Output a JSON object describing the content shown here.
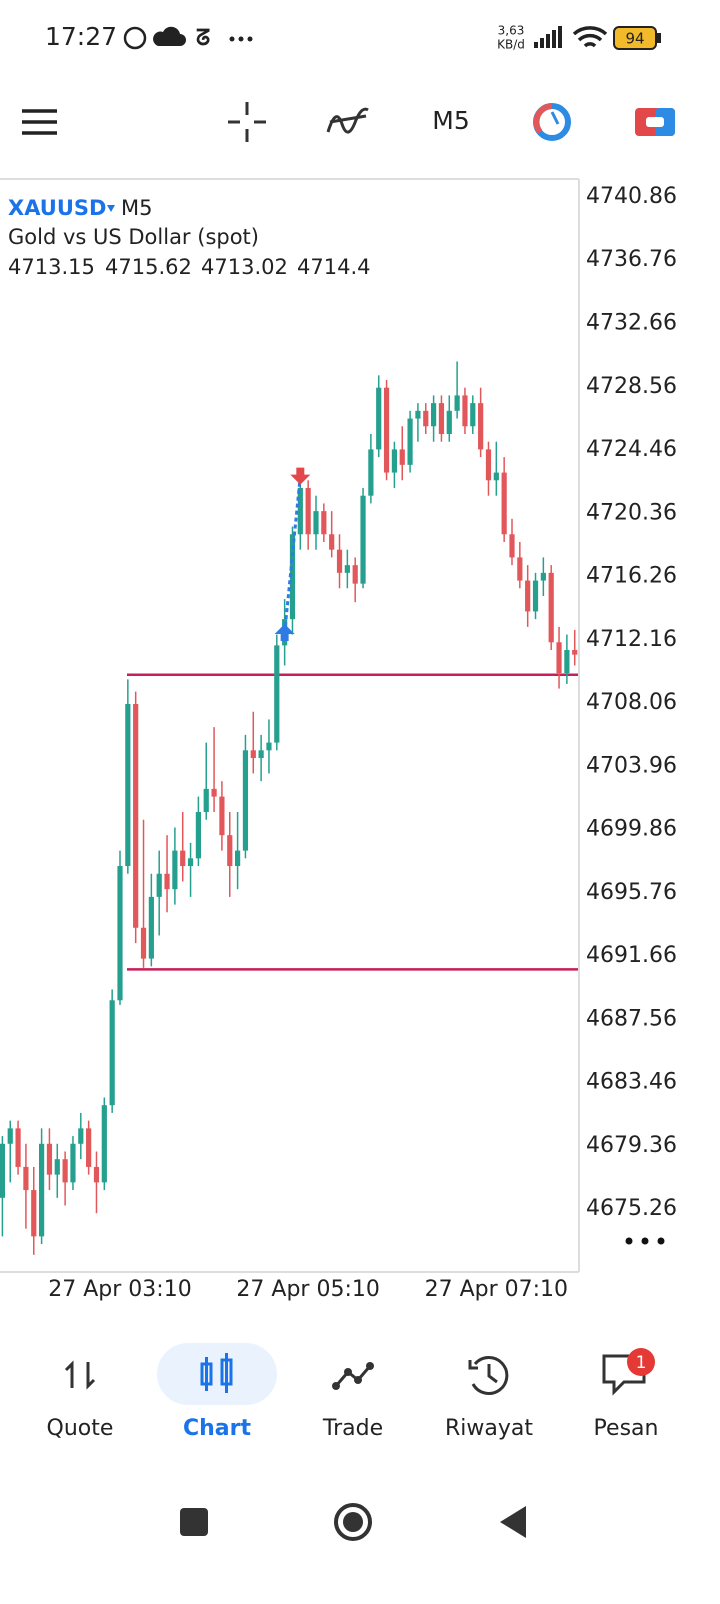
{
  "status": {
    "time": "17:27",
    "speed": [
      "3,63",
      "KB/d"
    ],
    "battery": 94
  },
  "toolbar": {
    "timeframe": "M5"
  },
  "chart_header": {
    "symbol": "XAUUSD",
    "timeframe": "M5",
    "description": "Gold vs US Dollar (spot)",
    "ohlc": [
      4713.15,
      4715.62,
      4713.02,
      4714.4
    ]
  },
  "chart_data": {
    "type": "candlestick",
    "ylim": [
      4671.19,
      4741.96
    ],
    "yticks": [
      4740.86,
      4736.76,
      4732.66,
      4728.56,
      4724.46,
      4720.36,
      4716.26,
      4712.16,
      4708.06,
      4703.96,
      4699.86,
      4695.76,
      4691.66,
      4687.56,
      4683.46,
      4679.36,
      4675.26
    ],
    "categories": [
      null,
      null,
      null,
      null,
      null,
      null,
      null,
      null,
      null,
      null,
      null,
      null,
      null,
      null,
      null,
      "27 Apr 03:10",
      null,
      null,
      null,
      null,
      null,
      null,
      null,
      null,
      null,
      null,
      null,
      null,
      null,
      null,
      null,
      null,
      null,
      null,
      null,
      null,
      null,
      null,
      null,
      "27 Apr 05:10",
      null,
      null,
      null,
      null,
      null,
      null,
      null,
      null,
      null,
      null,
      null,
      null,
      null,
      null,
      null,
      null,
      null,
      null,
      null,
      null,
      null,
      null,
      null,
      "27 Apr 07:10",
      null,
      null,
      null,
      null,
      null,
      null,
      null,
      null,
      null,
      null
    ],
    "up_color": "#26a08e",
    "down_color": "#e2575a",
    "candles": [
      [
        4676.0,
        4680.0,
        4673.5,
        4679.5
      ],
      [
        4679.5,
        4681.0,
        4677.0,
        4680.5
      ],
      [
        4680.5,
        4681.0,
        4677.5,
        4678.0
      ],
      [
        4678.0,
        4679.5,
        4674.0,
        4676.5
      ],
      [
        4676.5,
        4678.0,
        4672.3,
        4673.5
      ],
      [
        4673.5,
        4680.5,
        4673.0,
        4679.5
      ],
      [
        4679.5,
        4680.5,
        4676.5,
        4677.5
      ],
      [
        4677.5,
        4679.5,
        4676.0,
        4678.5
      ],
      [
        4678.5,
        4679.0,
        4675.5,
        4677.0
      ],
      [
        4677.0,
        4680.0,
        4676.5,
        4679.5
      ],
      [
        4679.5,
        4681.5,
        4678.5,
        4680.5
      ],
      [
        4680.5,
        4681.0,
        4677.5,
        4678.0
      ],
      [
        4678.0,
        4679.0,
        4675.0,
        4677.0
      ],
      [
        4677.0,
        4682.5,
        4676.5,
        4682.0
      ],
      [
        4682.0,
        4689.5,
        4681.5,
        4688.8
      ],
      [
        4688.8,
        4698.5,
        4688.5,
        4697.5
      ],
      [
        4697.5,
        4709.6,
        4697.0,
        4708.0
      ],
      [
        4708.0,
        4708.8,
        4692.5,
        4693.5
      ],
      [
        4693.5,
        4700.5,
        4690.9,
        4691.5
      ],
      [
        4691.5,
        4697.0,
        4691.0,
        4695.5
      ],
      [
        4695.5,
        4698.5,
        4693.0,
        4697.0
      ],
      [
        4697.0,
        4699.5,
        4694.5,
        4696.0
      ],
      [
        4696.0,
        4700.0,
        4695.0,
        4698.5
      ],
      [
        4698.5,
        4701.0,
        4696.5,
        4697.5
      ],
      [
        4697.5,
        4699.0,
        4695.5,
        4698.0
      ],
      [
        4698.0,
        4702.0,
        4697.5,
        4701.0
      ],
      [
        4701.0,
        4705.5,
        4700.5,
        4702.5
      ],
      [
        4702.5,
        4706.5,
        4701.0,
        4702.0
      ],
      [
        4702.0,
        4703.0,
        4698.5,
        4699.5
      ],
      [
        4699.5,
        4701.0,
        4695.5,
        4697.5
      ],
      [
        4697.5,
        4701.0,
        4696.0,
        4698.5
      ],
      [
        4698.5,
        4706.0,
        4698.0,
        4705.0
      ],
      [
        4705.0,
        4707.5,
        4703.5,
        4704.5
      ],
      [
        4704.5,
        4706.0,
        4703.0,
        4705.0
      ],
      [
        4705.0,
        4707.0,
        4703.5,
        4705.5
      ],
      [
        4705.5,
        4712.5,
        4705.0,
        4711.8
      ],
      [
        4711.8,
        4714.8,
        4710.5,
        4713.5
      ],
      [
        4713.5,
        4719.5,
        4712.5,
        4719.0
      ],
      [
        4719.0,
        4723.3,
        4718.0,
        4722.0
      ],
      [
        4722.0,
        4722.5,
        4718.0,
        4719.0
      ],
      [
        4719.0,
        4721.5,
        4718.0,
        4720.5
      ],
      [
        4720.5,
        4721.0,
        4718.5,
        4719.0
      ],
      [
        4719.0,
        4720.5,
        4717.5,
        4718.0
      ],
      [
        4718.0,
        4719.0,
        4715.5,
        4716.5
      ],
      [
        4716.5,
        4718.0,
        4715.5,
        4717.0
      ],
      [
        4717.0,
        4717.5,
        4714.6,
        4715.8
      ],
      [
        4715.8,
        4722.0,
        4715.5,
        4721.5
      ],
      [
        4721.5,
        4725.5,
        4721.0,
        4724.5
      ],
      [
        4724.5,
        4729.3,
        4724.0,
        4728.5
      ],
      [
        4728.5,
        4729.0,
        4722.5,
        4723.0
      ],
      [
        4723.0,
        4725.0,
        4722.0,
        4724.5
      ],
      [
        4724.5,
        4726.0,
        4722.5,
        4723.5
      ],
      [
        4723.5,
        4727.0,
        4723.0,
        4726.5
      ],
      [
        4726.5,
        4727.5,
        4725.0,
        4727.0
      ],
      [
        4727.0,
        4727.5,
        4725.5,
        4726.0
      ],
      [
        4726.0,
        4728.0,
        4725.0,
        4727.5
      ],
      [
        4727.5,
        4728.0,
        4725.0,
        4725.5
      ],
      [
        4725.5,
        4728.0,
        4725.0,
        4727.0
      ],
      [
        4727.0,
        4730.2,
        4726.5,
        4728.0
      ],
      [
        4728.0,
        4728.5,
        4725.5,
        4726.0
      ],
      [
        4726.0,
        4728.0,
        4725.5,
        4727.5
      ],
      [
        4727.5,
        4728.5,
        4724.0,
        4724.5
      ],
      [
        4724.5,
        4725.0,
        4721.5,
        4722.5
      ],
      [
        4722.5,
        4725.0,
        4721.5,
        4723.0
      ],
      [
        4723.0,
        4724.0,
        4718.5,
        4719.0
      ],
      [
        4719.0,
        4720.0,
        4717.0,
        4717.5
      ],
      [
        4717.5,
        4718.5,
        4715.5,
        4716.0
      ],
      [
        4716.0,
        4717.0,
        4713.0,
        4714.0
      ],
      [
        4714.0,
        4716.5,
        4713.5,
        4716.0
      ],
      [
        4716.0,
        4717.5,
        4715.0,
        4716.5
      ],
      [
        4716.5,
        4717.0,
        4711.5,
        4712.0
      ],
      [
        4712.0,
        4713.0,
        4709.0,
        4710.0
      ],
      [
        4710.0,
        4712.5,
        4709.3,
        4711.5
      ],
      [
        4711.5,
        4712.8,
        4710.5,
        4711.2
      ]
    ],
    "hlines": [
      4709.9,
      4690.8
    ],
    "hline_color": "#c81e5a",
    "arrows": [
      {
        "index": 36,
        "price": 4712.6,
        "side": "buy"
      },
      {
        "index": 38,
        "price": 4722.8,
        "side": "sell"
      }
    ]
  },
  "nav": {
    "items": [
      "Quote",
      "Chart",
      "Trade",
      "Riwayat",
      "Pesan"
    ],
    "badge": 1
  }
}
